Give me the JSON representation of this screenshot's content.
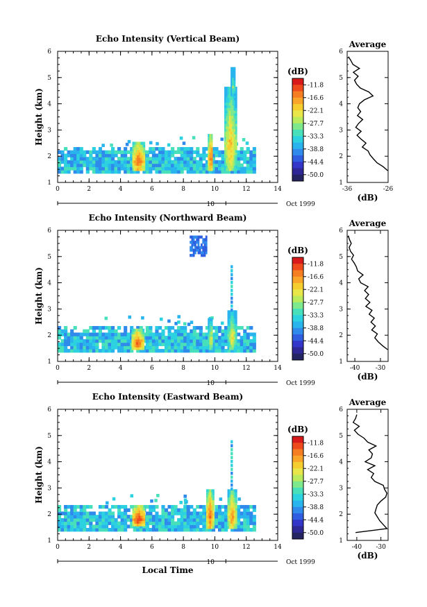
{
  "chart_data": [
    {
      "type": "heatmap",
      "title": "Echo Intensity (Vertical Beam)",
      "ylabel": "Height (km)",
      "xlabel": "",
      "xlim": [
        0,
        14
      ],
      "ylim": [
        1,
        6
      ],
      "xticks": [
        0,
        2,
        4,
        6,
        8,
        10,
        12,
        14
      ],
      "yticks": [
        1,
        2,
        3,
        4,
        5,
        6
      ],
      "date_label": "Oct 1999",
      "date_axis_tick": "10",
      "colorbar": {
        "label": "(dB)",
        "ticks": [
          "-11.8",
          "-16.6",
          "-22.1",
          "-27.7",
          "-33.3",
          "-38.8",
          "-44.4",
          "-50.0"
        ]
      },
      "average_profile": {
        "title": "Average",
        "xlabel": "(dB)",
        "xticks": [
          "-36",
          "-26"
        ],
        "xlim": [
          -36,
          -26
        ],
        "ylim": [
          1,
          6
        ],
        "yticks": [
          1,
          2,
          3,
          4,
          5,
          6
        ],
        "heights": [
          1.45,
          1.6,
          1.75,
          1.9,
          2.05,
          2.2,
          2.35,
          2.5,
          2.65,
          2.8,
          2.95,
          3.1,
          3.25,
          3.4,
          3.55,
          3.7,
          3.85,
          4.0,
          4.15,
          4.3,
          4.45,
          4.6,
          4.75,
          4.9,
          5.05,
          5.2,
          5.35,
          5.5,
          5.65,
          5.8
        ],
        "values": [
          -26.1,
          -27.2,
          -28.7,
          -29.6,
          -30.4,
          -30.9,
          -32.3,
          -31.4,
          -32.6,
          -33.6,
          -32.6,
          -33.9,
          -33.2,
          -32.2,
          -33.5,
          -32.7,
          -33.4,
          -33.0,
          -31.8,
          -29.7,
          -30.7,
          -32.8,
          -33.7,
          -34.2,
          -33.3,
          -34.5,
          -33.0,
          -34.6,
          -35.1,
          -35.7
        ]
      }
    },
    {
      "type": "heatmap",
      "title": "Echo Intensity (Northward Beam)",
      "ylabel": "Height (km)",
      "xlabel": "",
      "xlim": [
        0,
        14
      ],
      "ylim": [
        1,
        6
      ],
      "xticks": [
        0,
        2,
        4,
        6,
        8,
        10,
        12,
        14
      ],
      "yticks": [
        1,
        2,
        3,
        4,
        5,
        6
      ],
      "date_label": "Oct 1999",
      "date_axis_tick": "10",
      "colorbar": {
        "label": "(dB)",
        "ticks": [
          "-11.8",
          "-16.6",
          "-22.1",
          "-27.7",
          "-33.3",
          "-38.8",
          "-44.4",
          "-50.0"
        ]
      },
      "average_profile": {
        "title": "Average",
        "xlabel": "(dB)",
        "xticks": [
          "-40",
          "-30"
        ],
        "xlim": [
          -43,
          -27
        ],
        "ylim": [
          1,
          6
        ],
        "yticks": [
          1,
          2,
          3,
          4,
          5,
          6
        ],
        "heights": [
          1.45,
          1.6,
          1.75,
          1.9,
          2.05,
          2.2,
          2.35,
          2.5,
          2.65,
          2.8,
          2.95,
          3.1,
          3.25,
          3.4,
          3.55,
          3.7,
          3.85,
          4.0,
          4.15,
          4.3,
          4.45,
          4.6,
          4.75,
          4.9,
          5.05,
          5.2,
          5.35,
          5.5,
          5.65,
          5.8
        ],
        "values": [
          -27.2,
          -29.2,
          -30.9,
          -32.2,
          -31.2,
          -33.4,
          -32.0,
          -33.7,
          -32.4,
          -34.4,
          -33.3,
          -35.7,
          -34.1,
          -35.9,
          -34.6,
          -36.2,
          -34.8,
          -37.7,
          -38.5,
          -36.8,
          -38.9,
          -39.4,
          -40.2,
          -41.3,
          -40.5,
          -41.7,
          -42.2,
          -41.4,
          -42.1,
          -42.6
        ]
      }
    },
    {
      "type": "heatmap",
      "title": "Echo Intensity (Eastward Beam)",
      "ylabel": "Height (km)",
      "xlabel": "Local Time",
      "xlim": [
        0,
        14
      ],
      "ylim": [
        1,
        6
      ],
      "xticks": [
        0,
        2,
        4,
        6,
        8,
        10,
        12,
        14
      ],
      "yticks": [
        1,
        2,
        3,
        4,
        5,
        6
      ],
      "date_label": "Oct 1999",
      "date_axis_tick": "10",
      "colorbar": {
        "label": "(dB)",
        "ticks": [
          "-11.8",
          "-16.6",
          "-22.1",
          "-27.7",
          "-33.3",
          "-38.8",
          "-44.4",
          "-50.0"
        ]
      },
      "average_profile": {
        "title": "Average",
        "xlabel": "(dB)",
        "xticks": [
          "-40",
          "-30"
        ],
        "xlim": [
          -44,
          -27
        ],
        "ylim": [
          1,
          6
        ],
        "yticks": [
          1,
          2,
          3,
          4,
          5,
          6
        ],
        "heights": [
          1.3,
          1.45,
          1.6,
          1.75,
          1.9,
          2.05,
          2.2,
          2.35,
          2.5,
          2.65,
          2.8,
          2.95,
          3.1,
          3.25,
          3.4,
          3.55,
          3.7,
          3.85,
          4.0,
          4.15,
          4.3,
          4.45,
          4.6,
          4.75,
          4.9,
          5.05,
          5.2,
          5.35,
          5.5,
          5.65,
          5.8
        ],
        "values": [
          -40.5,
          -27.5,
          -29.0,
          -30.5,
          -31.5,
          -32.5,
          -32.0,
          -31.5,
          -30.0,
          -28.0,
          -27.5,
          -28.5,
          -29.0,
          -32.5,
          -34.0,
          -33.0,
          -35.5,
          -32.5,
          -36.5,
          -34.0,
          -33.5,
          -35.0,
          -32.0,
          -35.5,
          -37.0,
          -39.5,
          -41.0,
          -39.0,
          -41.5,
          -40.5,
          -40.0
        ]
      }
    }
  ]
}
